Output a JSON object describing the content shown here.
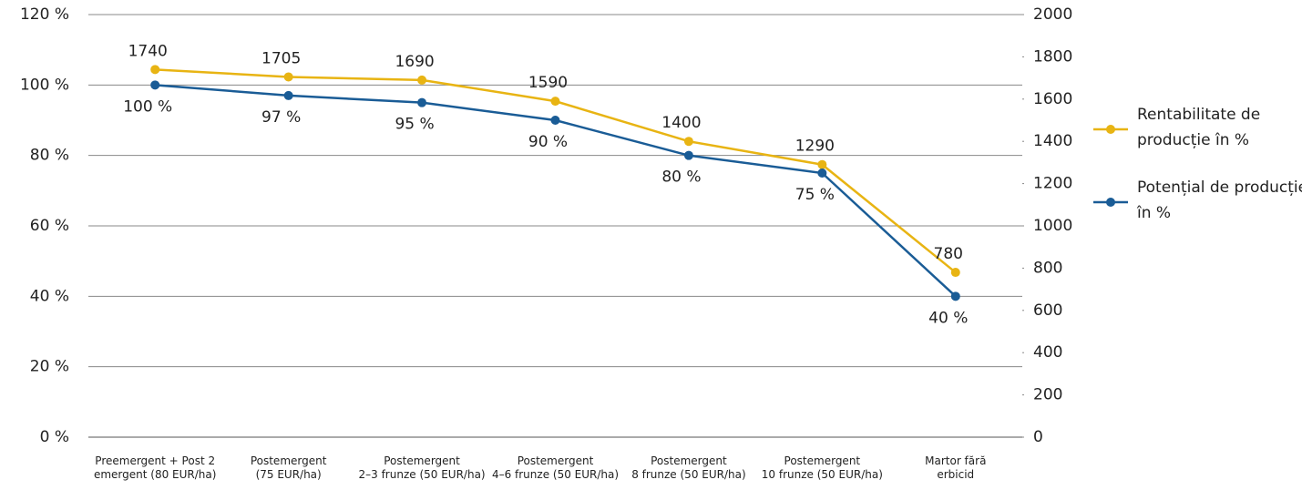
{
  "chart_data": {
    "type": "line",
    "categories": [
      "Preemergent + Post 2\nemergent (80 EUR/ha)",
      "Postemergent\n(75 EUR/ha)",
      "Postemergent\n2–3 frunze (50 EUR/ha)",
      "Postemergent\n4–6 frunze (50 EUR/ha)",
      "Postemergent\n8 frunze (50 EUR/ha)",
      "Postemergent\n10 frunze (50 EUR/ha)",
      "Martor fără\nerbicid"
    ],
    "series": [
      {
        "name": "Rentabilitate de producție în %",
        "color": "#e8b413",
        "axis": "y2",
        "values": [
          1740,
          1705,
          1690,
          1590,
          1400,
          1290,
          780
        ]
      },
      {
        "name": "Potențial de producție în %",
        "color": "#1a5c96",
        "values": [
          100,
          97,
          95,
          90,
          80,
          75,
          40
        ],
        "value_labels": [
          "100 %",
          "97 %",
          "95 %",
          "90 %",
          "80 %",
          "75 %",
          "40 %"
        ]
      }
    ],
    "ylim": [
      0,
      120
    ],
    "yticks": [
      {
        "value": 0,
        "label": "0 %"
      },
      {
        "value": 20,
        "label": "20 %"
      },
      {
        "value": 40,
        "label": "40 %"
      },
      {
        "value": 60,
        "label": "60 %"
      },
      {
        "value": 80,
        "label": "80 %"
      },
      {
        "value": 100,
        "label": "100 %"
      },
      {
        "value": 120,
        "label": "120 %"
      }
    ],
    "y2lim": [
      0,
      2000
    ],
    "y2ticks": [
      0,
      200,
      400,
      600,
      800,
      1000,
      1200,
      1400,
      1600,
      1800,
      2000
    ],
    "grid": true,
    "legend": "right"
  }
}
